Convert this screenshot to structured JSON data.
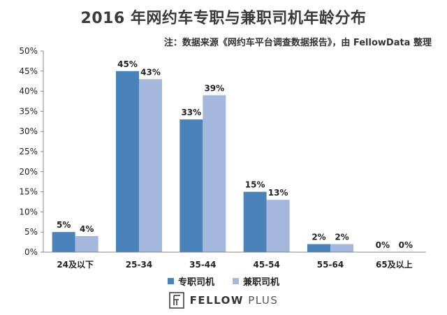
{
  "title": "2016 年网约车专职与兼职司机年龄分布",
  "subtitle": "注：数据来源《网约车平台调查数据报告》，由 FellowData 整理",
  "colors": {
    "series1": "#4a82ba",
    "series2": "#a3b8dc"
  },
  "chart_data": {
    "type": "bar",
    "categories": [
      "24及以下",
      "25-34",
      "35-44",
      "45-54",
      "55-64",
      "65及以上"
    ],
    "series": [
      {
        "name": "专职司机",
        "values": [
          5,
          45,
          33,
          15,
          2,
          0
        ]
      },
      {
        "name": "兼职司机",
        "values": [
          4,
          43,
          39,
          13,
          2,
          0
        ]
      }
    ],
    "data_labels": [
      [
        "5%",
        "45%",
        "33%",
        "15%",
        "2%",
        "0%"
      ],
      [
        "4%",
        "43%",
        "39%",
        "13%",
        "2%",
        "0%"
      ]
    ],
    "ylim": [
      0,
      50
    ],
    "yticks": [
      "0%",
      "5%",
      "10%",
      "15%",
      "20%",
      "25%",
      "30%",
      "35%",
      "40%",
      "45%",
      "50%"
    ],
    "grid": false,
    "legend": "bottom"
  },
  "brand": {
    "mark_icon": "fellow-plus-logo-icon",
    "bold": "FELLOW",
    "light": "PLUS"
  }
}
